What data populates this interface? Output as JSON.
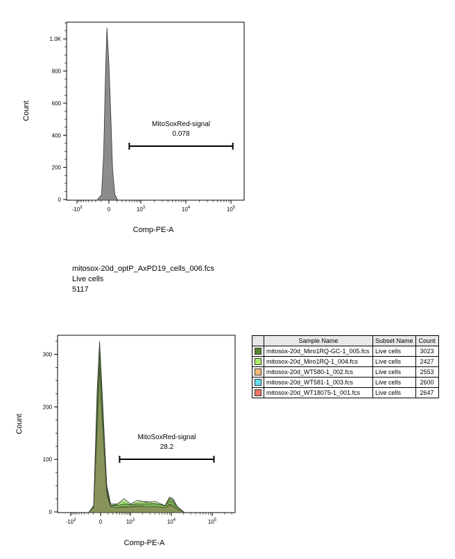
{
  "chart_data": [
    {
      "type": "area",
      "title": "",
      "xlabel": "Comp-PE-A",
      "ylabel": "Count",
      "x_scale": "biexponential",
      "x_ticks": [
        "-10^3",
        "0",
        "10^3",
        "10^4",
        "10^5"
      ],
      "y_ticks": [
        "0",
        "200",
        "400",
        "600",
        "800",
        "1.0K"
      ],
      "ylim": [
        0,
        1100
      ],
      "series": [
        {
          "color": "#8c8c8c",
          "points": [
            [
              -160,
              0
            ],
            [
              -90,
              30
            ],
            [
              -60,
              280
            ],
            [
              -35,
              820
            ],
            [
              -20,
              1070
            ],
            [
              0,
              850
            ],
            [
              20,
              520
            ],
            [
              40,
              190
            ],
            [
              70,
              30
            ],
            [
              110,
              0
            ]
          ]
        }
      ],
      "gate": {
        "label": "MitoSoxRed-signal",
        "value": "0.078",
        "x_range": [
          400,
          110000
        ]
      }
    },
    {
      "type": "area",
      "title": "",
      "xlabel": "Comp-PE-A",
      "ylabel": "Count",
      "x_scale": "biexponential",
      "x_ticks": [
        "-10^3",
        "0",
        "10^3",
        "10^4",
        "10^5"
      ],
      "y_ticks": [
        "0",
        "100",
        "200",
        "300"
      ],
      "ylim": [
        0,
        335
      ],
      "series": [
        {
          "color": "#66cc33",
          "points": [
            [
              -180,
              0
            ],
            [
              -90,
              10
            ],
            [
              -40,
              200
            ],
            [
              -10,
              310
            ],
            [
              20,
              210
            ],
            [
              80,
              50
            ],
            [
              150,
              15
            ],
            [
              300,
              15
            ],
            [
              600,
              20
            ],
            [
              1000,
              12
            ],
            [
              1500,
              18
            ],
            [
              2500,
              20
            ],
            [
              4000,
              15
            ],
            [
              7000,
              12
            ],
            [
              9000,
              25
            ],
            [
              11000,
              22
            ],
            [
              14000,
              10
            ],
            [
              20000,
              0
            ]
          ]
        },
        {
          "color": "#aaee66",
          "points": [
            [
              -180,
              0
            ],
            [
              -90,
              10
            ],
            [
              -40,
              180
            ],
            [
              -10,
              300
            ],
            [
              20,
              190
            ],
            [
              80,
              40
            ],
            [
              150,
              12
            ],
            [
              300,
              14
            ],
            [
              600,
              25
            ],
            [
              1000,
              15
            ],
            [
              1500,
              22
            ],
            [
              2500,
              18
            ],
            [
              4000,
              20
            ],
            [
              7000,
              12
            ],
            [
              9000,
              20
            ],
            [
              11000,
              18
            ],
            [
              14000,
              8
            ],
            [
              20000,
              0
            ]
          ]
        },
        {
          "color": "#ffbb77",
          "points": [
            [
              -180,
              0
            ],
            [
              -90,
              8
            ],
            [
              -40,
              160
            ],
            [
              -10,
              280
            ],
            [
              20,
              175
            ],
            [
              80,
              35
            ],
            [
              150,
              10
            ],
            [
              300,
              8
            ],
            [
              600,
              10
            ],
            [
              1000,
              10
            ],
            [
              1500,
              12
            ],
            [
              2500,
              10
            ],
            [
              4000,
              10
            ],
            [
              7000,
              8
            ],
            [
              9000,
              15
            ],
            [
              11000,
              12
            ],
            [
              14000,
              5
            ],
            [
              20000,
              0
            ]
          ]
        },
        {
          "color": "#66ddee",
          "points": [
            [
              -180,
              0
            ],
            [
              -90,
              8
            ],
            [
              -40,
              150
            ],
            [
              -10,
              270
            ],
            [
              20,
              165
            ],
            [
              80,
              30
            ],
            [
              150,
              10
            ],
            [
              300,
              8
            ],
            [
              600,
              8
            ],
            [
              1000,
              9
            ],
            [
              1500,
              10
            ],
            [
              2500,
              10
            ],
            [
              4000,
              10
            ],
            [
              7000,
              8
            ],
            [
              9000,
              12
            ],
            [
              11000,
              10
            ],
            [
              14000,
              5
            ],
            [
              20000,
              0
            ]
          ]
        },
        {
          "color": "#ee7766",
          "points": [
            [
              -180,
              0
            ],
            [
              -90,
              8
            ],
            [
              -40,
              150
            ],
            [
              -10,
              275
            ],
            [
              20,
              170
            ],
            [
              80,
              32
            ],
            [
              150,
              10
            ],
            [
              300,
              8
            ],
            [
              600,
              9
            ],
            [
              1000,
              10
            ],
            [
              1500,
              10
            ],
            [
              2500,
              10
            ],
            [
              4000,
              10
            ],
            [
              7000,
              8
            ],
            [
              9000,
              14
            ],
            [
              11000,
              12
            ],
            [
              14000,
              5
            ],
            [
              20000,
              0
            ]
          ]
        },
        {
          "color": "#558833",
          "points": [
            [
              -180,
              0
            ],
            [
              -90,
              12
            ],
            [
              -40,
              230
            ],
            [
              -10,
              325
            ],
            [
              20,
              220
            ],
            [
              80,
              45
            ],
            [
              150,
              12
            ],
            [
              300,
              12
            ],
            [
              600,
              15
            ],
            [
              1000,
              14
            ],
            [
              1500,
              15
            ],
            [
              2500,
              15
            ],
            [
              4000,
              16
            ],
            [
              7000,
              12
            ],
            [
              9000,
              28
            ],
            [
              11000,
              25
            ],
            [
              14000,
              10
            ],
            [
              20000,
              0
            ]
          ]
        }
      ],
      "gate": {
        "label": "MitoSoxRed-signal",
        "value": "28.2",
        "x_range": [
          400,
          110000
        ]
      }
    }
  ],
  "caption": {
    "file": "mitosox-20d_optP_AxPD19_cells_006.fcs",
    "subset": "Live cells",
    "count": "5117"
  },
  "legend": {
    "headers": [
      "Sample Name",
      "Subset Name",
      "Count"
    ],
    "rows": [
      {
        "color": "#558833",
        "sample": "mitosox-20d_Miro1RQ-GC-1_005.fcs",
        "subset": "Live cells",
        "count": "3023"
      },
      {
        "color": "#aaee66",
        "sample": "mitosox-20d_Miro1RQ-1_004.fcs",
        "subset": "Live cells",
        "count": "2427"
      },
      {
        "color": "#ffbb77",
        "sample": "mitosox-20d_WT580-1_002.fcs",
        "subset": "Live cells",
        "count": "2553"
      },
      {
        "color": "#66ddee",
        "sample": "mitosox-20d_WT581-1_003.fcs",
        "subset": "Live cells",
        "count": "2600"
      },
      {
        "color": "#ee7766",
        "sample": "mitosox-20d_WT18075-1_001.fcs",
        "subset": "Live cells",
        "count": "2647"
      }
    ]
  }
}
